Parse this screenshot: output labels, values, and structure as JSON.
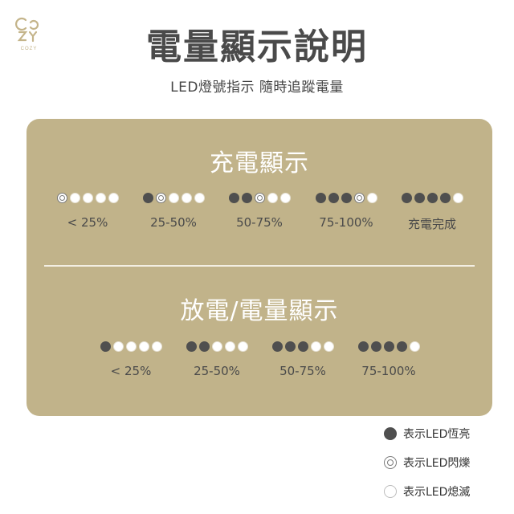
{
  "brand": {
    "logo_text": "COZY"
  },
  "header": {
    "title": "電量顯示說明",
    "subtitle": "LED燈號指示 隨時追蹤電量"
  },
  "colors": {
    "panel": "#c1b38a",
    "led_on": "#4f4f4f",
    "led_off": "#ffffff",
    "title": "#4a4a4a"
  },
  "charging": {
    "title": "充電顯示",
    "groups": [
      {
        "label": "< 25%",
        "leds": [
          "blink",
          "off",
          "off",
          "off",
          "off"
        ]
      },
      {
        "label": "25-50%",
        "leds": [
          "on",
          "blink",
          "off",
          "off",
          "off"
        ]
      },
      {
        "label": "50-75%",
        "leds": [
          "on",
          "on",
          "blink",
          "off",
          "off"
        ]
      },
      {
        "label": "75-100%",
        "leds": [
          "on",
          "on",
          "on",
          "blink",
          "off"
        ]
      },
      {
        "label": "充電完成",
        "leds": [
          "on",
          "on",
          "on",
          "on",
          "off"
        ]
      }
    ]
  },
  "discharging": {
    "title": "放電/電量顯示",
    "groups": [
      {
        "label": "< 25%",
        "leds": [
          "on",
          "off",
          "off",
          "off",
          "off"
        ]
      },
      {
        "label": "25-50%",
        "leds": [
          "on",
          "on",
          "off",
          "off",
          "off"
        ]
      },
      {
        "label": "50-75%",
        "leds": [
          "on",
          "on",
          "on",
          "off",
          "off"
        ]
      },
      {
        "label": "75-100%",
        "leds": [
          "on",
          "on",
          "on",
          "on",
          "off"
        ]
      }
    ]
  },
  "legend": [
    {
      "state": "on",
      "label": "表示LED恆亮"
    },
    {
      "state": "blink",
      "label": "表示LED閃爍"
    },
    {
      "state": "off",
      "label": "表示LED熄滅"
    }
  ]
}
